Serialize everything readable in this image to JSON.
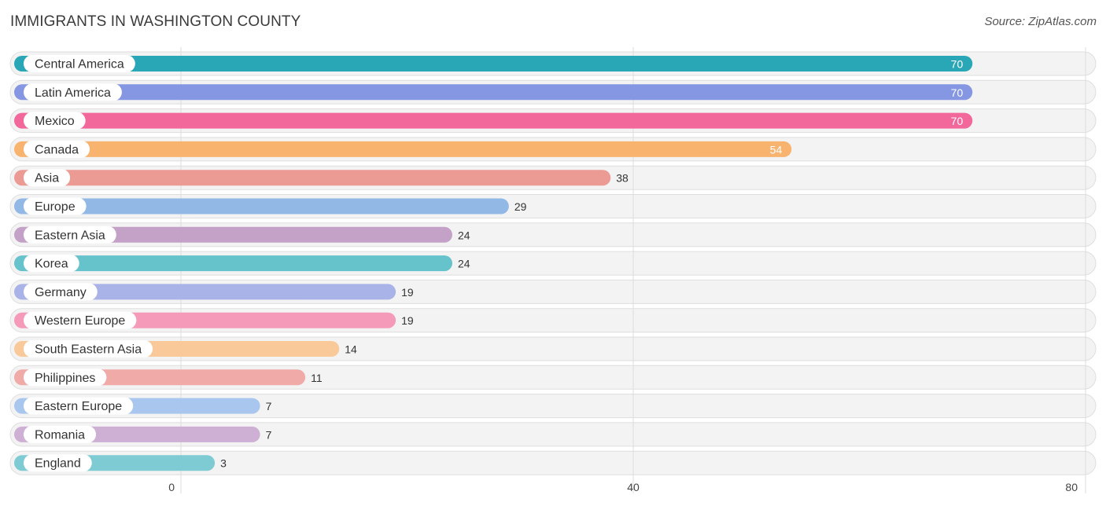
{
  "title": "IMMIGRANTS IN WASHINGTON COUNTY",
  "source": "Source: ZipAtlas.com",
  "chart_data": {
    "type": "bar",
    "orientation": "horizontal",
    "title": "IMMIGRANTS IN WASHINGTON COUNTY",
    "xlim": [
      0,
      80
    ],
    "x_ticks": [
      0,
      40,
      80
    ],
    "grid": true,
    "categories": [
      "Central America",
      "Latin America",
      "Mexico",
      "Canada",
      "Asia",
      "Europe",
      "Eastern Asia",
      "Korea",
      "Germany",
      "Western Europe",
      "South Eastern Asia",
      "Philippines",
      "Eastern Europe",
      "Romania",
      "England"
    ],
    "values": [
      70,
      70,
      70,
      54,
      38,
      29,
      24,
      24,
      19,
      19,
      14,
      11,
      7,
      7,
      3
    ],
    "colors": [
      "#2aa7b7",
      "#8597e2",
      "#f2689a",
      "#f8b36f",
      "#eb9a94",
      "#92b8e6",
      "#c4a2c8",
      "#66c2cb",
      "#aab3e8",
      "#f59ab8",
      "#f9c99a",
      "#f0aaa8",
      "#a9c7ee",
      "#cdb0d4",
      "#7fcbd4"
    ]
  }
}
